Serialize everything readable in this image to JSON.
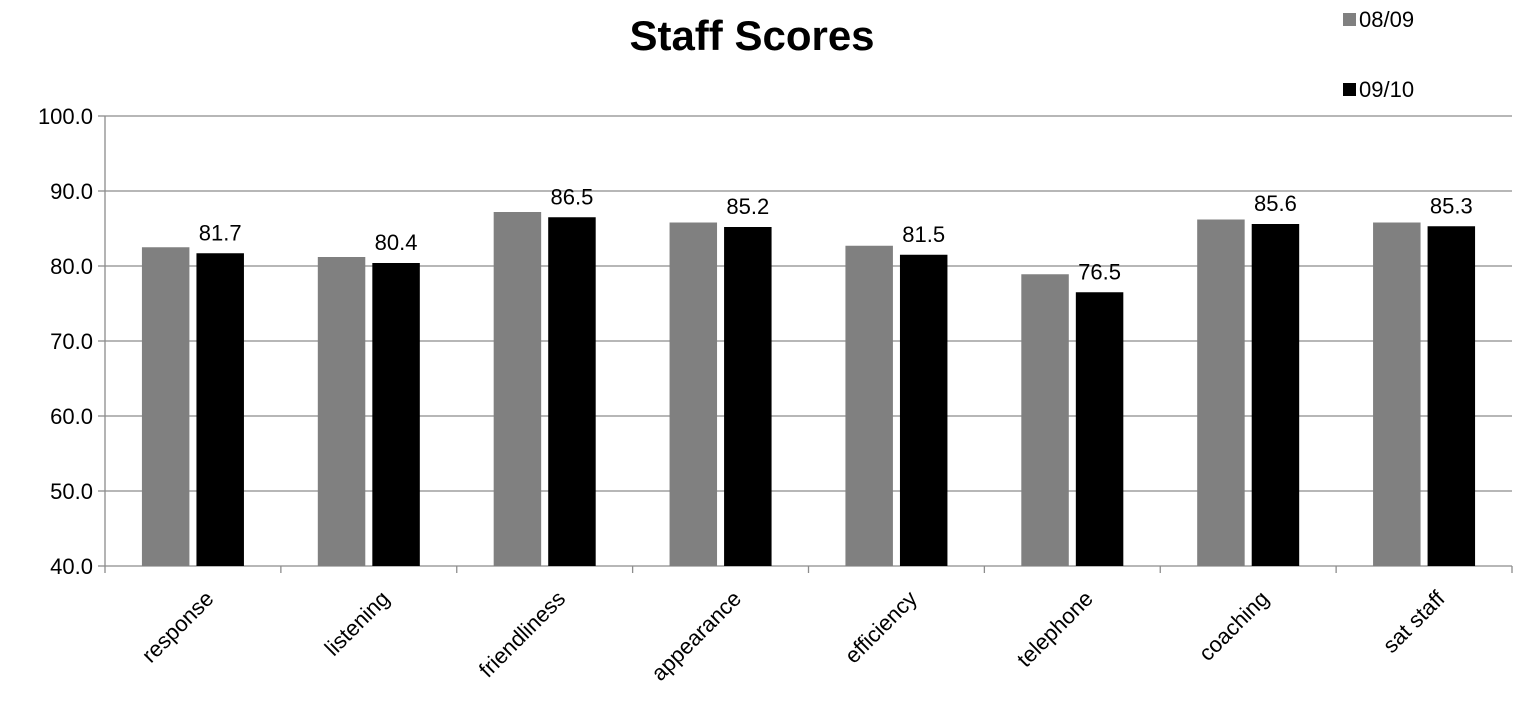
{
  "chart_data": {
    "type": "bar",
    "title": "Staff Scores",
    "xlabel": "",
    "ylabel": "",
    "ylim": [
      40,
      100
    ],
    "yticks": [
      "40.0",
      "50.0",
      "60.0",
      "70.0",
      "80.0",
      "90.0",
      "100.0"
    ],
    "grid": true,
    "legend_position": "top-right",
    "categories": [
      "response",
      "listening",
      "friendliness",
      "appearance",
      "efficiency",
      "telephone",
      "coaching",
      "sat staff"
    ],
    "series": [
      {
        "name": "08/09",
        "color": "#808080",
        "values": [
          82.5,
          81.2,
          87.2,
          85.8,
          82.7,
          78.9,
          86.2,
          85.8
        ],
        "show_labels": false
      },
      {
        "name": "09/10",
        "color": "#000000",
        "values": [
          81.7,
          80.4,
          86.5,
          85.2,
          81.5,
          76.5,
          85.6,
          85.3
        ],
        "data_labels": [
          "81.7",
          "80.4",
          "86.5",
          "85.2",
          "81.5",
          "76.5",
          "85.6",
          "85.3"
        ],
        "show_labels": true
      }
    ]
  }
}
